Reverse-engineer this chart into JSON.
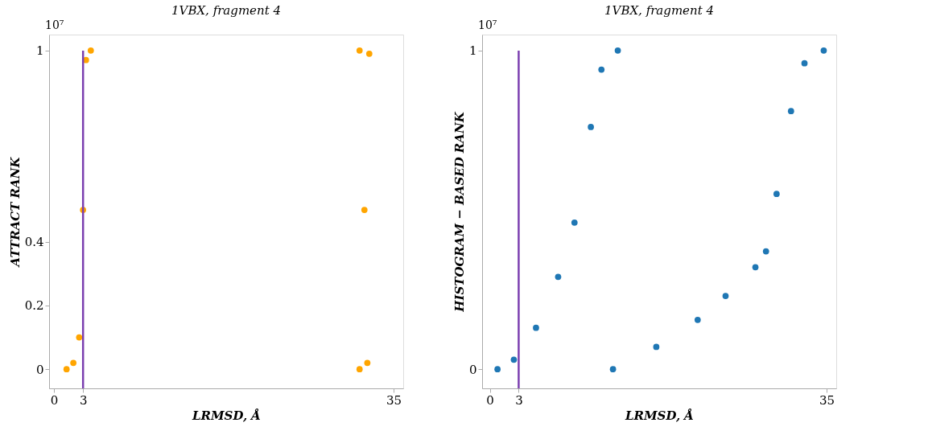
{
  "chart_data": [
    {
      "type": "scatter",
      "title": "1VBX, fragment 4",
      "xlabel": "LRMSD, Å",
      "ylabel": "ATTRACT RANK",
      "annotations": [
        "10⁷"
      ],
      "xlim": [
        -0.5,
        36
      ],
      "xticks": [
        0,
        3,
        35
      ],
      "ylim": [
        -0.06,
        1.05
      ],
      "yticks": [
        0,
        0.2,
        0.4,
        1
      ],
      "grid": false,
      "legend": false,
      "marker": "circle",
      "ref_lines": [
        {
          "axis": "x",
          "value": 3,
          "color": "#7b3fb0"
        }
      ],
      "series": [
        {
          "color": "#ffa500",
          "x": [
            1.3,
            31.5,
            32.3,
            32.0,
            32.5,
            31.5,
            3.8,
            3.3,
            3.0,
            2.6,
            2.0
          ],
          "values": [
            0.0,
            0.0,
            0.02,
            0.5,
            0.99,
            1.0,
            1.0,
            0.97,
            0.5,
            0.1,
            0.02
          ]
        }
      ]
    },
    {
      "type": "scatter",
      "title": "1VBX, fragment 4",
      "xlabel": "LRMSD, Å",
      "ylabel": "HISTOGRAM − BASED RANK",
      "annotations": [
        "10⁷"
      ],
      "xlim": [
        -0.8,
        36
      ],
      "xticks": [
        0,
        3,
        35
      ],
      "ylim": [
        -0.06,
        1.05
      ],
      "yticks": [
        0,
        1
      ],
      "grid": false,
      "legend": false,
      "marker": "circle",
      "ref_lines": [
        {
          "axis": "x",
          "value": 3,
          "color": "#7b3fb0"
        }
      ],
      "series": [
        {
          "color": "#1f77b4",
          "x": [
            0.8,
            12.8,
            17.3,
            21.6,
            24.5,
            27.6,
            28.7,
            29.8,
            31.3,
            32.7,
            34.7,
            13.3,
            11.6,
            10.5,
            8.8,
            7.1,
            4.8,
            2.5
          ],
          "values": [
            0.0,
            0.0,
            0.07,
            0.155,
            0.23,
            0.32,
            0.37,
            0.55,
            0.81,
            0.96,
            1.0,
            1.0,
            0.94,
            0.76,
            0.46,
            0.29,
            0.13,
            0.03
          ]
        }
      ]
    }
  ]
}
